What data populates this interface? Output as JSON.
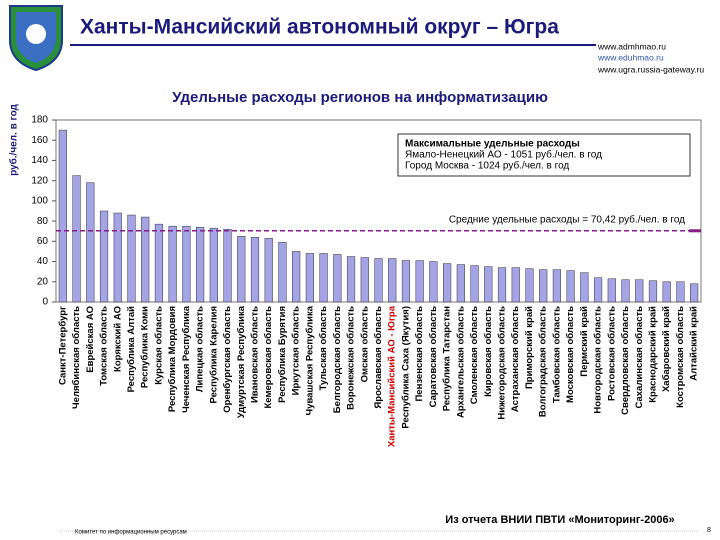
{
  "header": {
    "title": "Ханты-Мансийский автономный округ – Югра",
    "links": [
      "www.admhmao.ru",
      "www.eduhmao.ru",
      "www.ugra.russia-gateway.ru"
    ]
  },
  "chart_data": {
    "type": "bar",
    "title": "Удельные расходы регионов на информатизацию",
    "y_label": "руб./чел. в год",
    "categories": [
      "Санкт-Петербург",
      "Челябинская область",
      "Еврейская АО",
      "Томская область",
      "Корякский АО",
      "Республика Алтай",
      "Республика Коми",
      "Курская область",
      "Республика Мордовия",
      "Чеченская Республика",
      "Липецкая область",
      "Республика Карелия",
      "Оренбургская область",
      "Удмуртская Республика",
      "Ивановская область",
      "Кемеровская область",
      "Республика Бурятия",
      "Иркутская область",
      "Чувашская Республика",
      "Тульская область",
      "Белгородская область",
      "Воронежская область",
      "Омская область",
      "Ярославская область",
      "Ханты-Мансийский АО - Югра",
      "Республика Саха (Якутия)",
      "Пензенская область",
      "Саратовская область",
      "Республика Татарстан",
      "Архангельская область",
      "Смоленская область",
      "Кировская область",
      "Нижегородская область",
      "Астраханская область",
      "Приморский край",
      "Волгоградская область",
      "Тамбовская область",
      "Московская область",
      "Пермский край",
      "Новгородская область",
      "Ростовская область",
      "Свердловская область",
      "Сахалинская область",
      "Краснодарский край",
      "Хабаровский край",
      "Костромская область",
      "Алтайский край"
    ],
    "values": [
      170,
      125,
      118,
      90,
      88,
      86,
      84,
      77,
      75,
      75,
      74,
      73,
      72,
      65,
      64,
      63,
      59,
      50,
      48,
      48,
      47,
      45,
      44,
      43,
      43,
      41,
      41,
      40,
      38,
      37,
      36,
      35,
      34,
      34,
      33,
      32,
      32,
      31,
      29,
      24,
      23,
      22,
      22,
      21,
      20,
      20,
      18
    ],
    "color": "#a3a3e6",
    "highlight": {
      "index": 24,
      "color": "#cc0000"
    },
    "ylim": [
      0,
      180
    ],
    "yticks": [
      0,
      20,
      40,
      60,
      80,
      100,
      120,
      140,
      160,
      180
    ],
    "average": {
      "value": 70.42,
      "label": "Средние удельные расходы = 70,42 руб./чел. в год",
      "color": "#8b1a8b"
    },
    "note": [
      "Максимальные удельные расходы",
      "Ямало-Ненецкий АО - 1051 руб./чел. в год",
      "Город Москва - 1024 руб./чел. в год"
    ]
  },
  "footer": {
    "source": "Из отчета ВНИИ ПВТИ «Мониторинг-2006»",
    "org": "Комитет по информационным ресурсам",
    "page": "8"
  }
}
